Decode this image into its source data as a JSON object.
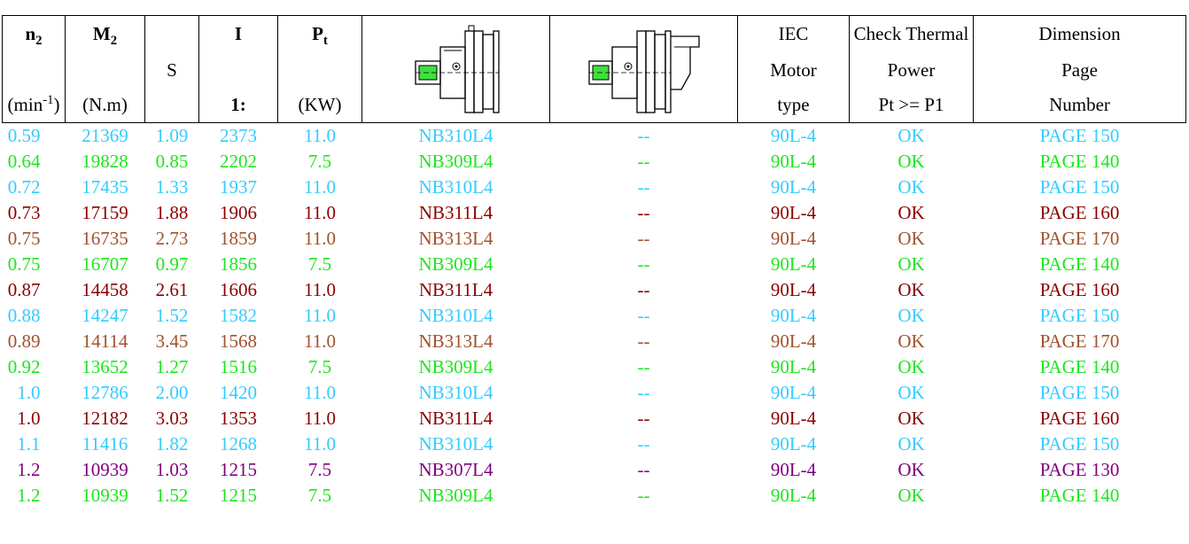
{
  "header": {
    "n2": {
      "symbol": "n",
      "sub": "2",
      "unit_base": "(min",
      "unit_sup": "-1",
      "unit_close": ")"
    },
    "m2": {
      "symbol": "M",
      "sub": "2",
      "unit": "(N.m)"
    },
    "s": {
      "label": "S"
    },
    "i": {
      "label": "I",
      "unit": "1:"
    },
    "pt": {
      "symbol": "P",
      "sub": "t",
      "unit": "(KW)"
    },
    "iec": {
      "line1": "IEC",
      "line2": "Motor",
      "line3": "type"
    },
    "thermal": {
      "line1": "Check Thermal",
      "line2": "Power",
      "line3": "Pt >= P1"
    },
    "dimension": {
      "line1": "Dimension",
      "line2": "Page",
      "line3": "Number"
    }
  },
  "colors": {
    "NB310": "#33ccff",
    "NB309": "#1de61d",
    "NB311": "#8b0000",
    "NB313": "#a0522d",
    "NB307": "#800080",
    "dimension_header": "#1f1fff",
    "dash_NB310": "#33ccff",
    "dash_NB309": "#1de61d"
  },
  "rows": [
    {
      "n2": "0.59",
      "m2": "21369",
      "s": "1.09",
      "i": "2373",
      "pt": "11.0",
      "model": "NB310L4",
      "alt": "--",
      "motor": "90L-4",
      "check": "OK",
      "page": "PAGE 150",
      "color": "#33ccff"
    },
    {
      "n2": "0.64",
      "m2": "19828",
      "s": "0.85",
      "i": "2202",
      "pt": "7.5",
      "model": "NB309L4",
      "alt": "--",
      "motor": "90L-4",
      "check": "OK",
      "page": "PAGE 140",
      "color": "#1de61d"
    },
    {
      "n2": "0.72",
      "m2": "17435",
      "s": "1.33",
      "i": "1937",
      "pt": "11.0",
      "model": "NB310L4",
      "alt": "--",
      "motor": "90L-4",
      "check": "OK",
      "page": "PAGE 150",
      "color": "#33ccff"
    },
    {
      "n2": "0.73",
      "m2": "17159",
      "s": "1.88",
      "i": "1906",
      "pt": "11.0",
      "model": "NB311L4",
      "alt": "--",
      "motor": "90L-4",
      "check": "OK",
      "page": "PAGE 160",
      "color": "#8b0000"
    },
    {
      "n2": "0.75",
      "m2": "16735",
      "s": "2.73",
      "i": "1859",
      "pt": "11.0",
      "model": "NB313L4",
      "alt": "--",
      "motor": "90L-4",
      "check": "OK",
      "page": "PAGE 170",
      "color": "#a0522d"
    },
    {
      "n2": "0.75",
      "m2": "16707",
      "s": "0.97",
      "i": "1856",
      "pt": "7.5",
      "model": "NB309L4",
      "alt": "--",
      "motor": "90L-4",
      "check": "OK",
      "page": "PAGE 140",
      "color": "#1de61d"
    },
    {
      "n2": "0.87",
      "m2": "14458",
      "s": "2.61",
      "i": "1606",
      "pt": "11.0",
      "model": "NB311L4",
      "alt": "--",
      "motor": "90L-4",
      "check": "OK",
      "page": "PAGE 160",
      "color": "#8b0000"
    },
    {
      "n2": "0.88",
      "m2": "14247",
      "s": "1.52",
      "i": "1582",
      "pt": "11.0",
      "model": "NB310L4",
      "alt": "--",
      "motor": "90L-4",
      "check": "OK",
      "page": "PAGE 150",
      "color": "#33ccff"
    },
    {
      "n2": "0.89",
      "m2": "14114",
      "s": "3.45",
      "i": "1568",
      "pt": "11.0",
      "model": "NB313L4",
      "alt": "--",
      "motor": "90L-4",
      "check": "OK",
      "page": "PAGE 170",
      "color": "#a0522d"
    },
    {
      "n2": "0.92",
      "m2": "13652",
      "s": "1.27",
      "i": "1516",
      "pt": "7.5",
      "model": "NB309L4",
      "alt": "--",
      "motor": "90L-4",
      "check": "OK",
      "page": "PAGE 140",
      "color": "#1de61d"
    },
    {
      "n2": "1.0",
      "m2": "12786",
      "s": "2.00",
      "i": "1420",
      "pt": "11.0",
      "model": "NB310L4",
      "alt": "--",
      "motor": "90L-4",
      "check": "OK",
      "page": "PAGE 150",
      "color": "#33ccff"
    },
    {
      "n2": "1.0",
      "m2": "12182",
      "s": "3.03",
      "i": "1353",
      "pt": "11.0",
      "model": "NB311L4",
      "alt": "--",
      "motor": "90L-4",
      "check": "OK",
      "page": "PAGE 160",
      "color": "#8b0000"
    },
    {
      "n2": "1.1",
      "m2": "11416",
      "s": "1.82",
      "i": "1268",
      "pt": "11.0",
      "model": "NB310L4",
      "alt": "--",
      "motor": "90L-4",
      "check": "OK",
      "page": "PAGE 150",
      "color": "#33ccff"
    },
    {
      "n2": "1.2",
      "m2": "10939",
      "s": "1.03",
      "i": "1215",
      "pt": "7.5",
      "model": "NB307L4",
      "alt": "--",
      "motor": "90L-4",
      "check": "OK",
      "page": "PAGE 130",
      "color": "#800080"
    },
    {
      "n2": "1.2",
      "m2": "10939",
      "s": "1.52",
      "i": "1215",
      "pt": "7.5",
      "model": "NB309L4",
      "alt": "--",
      "motor": "90L-4",
      "check": "OK",
      "page": "PAGE 140",
      "color": "#1de61d"
    }
  ]
}
